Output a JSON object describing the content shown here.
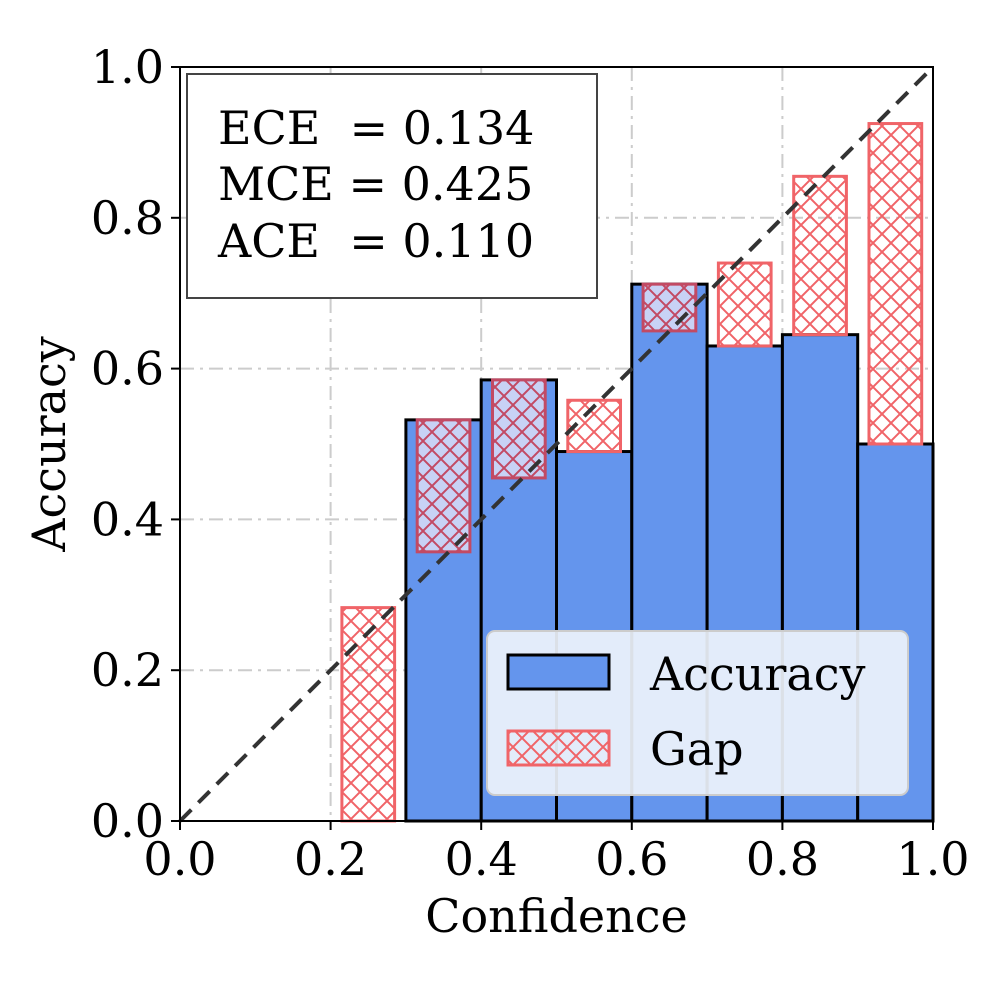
{
  "chart_data": {
    "type": "bar",
    "title": "",
    "xlabel": "Confidence",
    "ylabel": "Accuracy",
    "xlim": [
      0.0,
      1.0
    ],
    "ylim": [
      0.0,
      1.0
    ],
    "grid": true,
    "xticks": [
      "0.0",
      "0.2",
      "0.4",
      "0.6",
      "0.8",
      "1.0"
    ],
    "yticks": [
      "0.0",
      "0.2",
      "0.4",
      "0.6",
      "0.8",
      "1.0"
    ],
    "bins": [
      {
        "left": 0.3,
        "right": 0.4,
        "accuracy": 0.532,
        "confidence": 0.357
      },
      {
        "left": 0.4,
        "right": 0.5,
        "accuracy": 0.585,
        "confidence": 0.455
      },
      {
        "left": 0.5,
        "right": 0.6,
        "accuracy": 0.49,
        "confidence": 0.558
      },
      {
        "left": 0.6,
        "right": 0.7,
        "accuracy": 0.712,
        "confidence": 0.65
      },
      {
        "left": 0.7,
        "right": 0.8,
        "accuracy": 0.63,
        "confidence": 0.74
      },
      {
        "left": 0.8,
        "right": 0.9,
        "accuracy": 0.645,
        "confidence": 0.855
      },
      {
        "left": 0.9,
        "right": 1.0,
        "accuracy": 0.5,
        "confidence": 0.925
      }
    ],
    "gaps": [
      {
        "center": 0.25,
        "bottom": 0.0,
        "top": 0.283
      },
      {
        "center": 0.35,
        "bottom": 0.357,
        "top": 0.532
      },
      {
        "center": 0.45,
        "bottom": 0.455,
        "top": 0.585
      },
      {
        "center": 0.55,
        "bottom": 0.49,
        "top": 0.558
      },
      {
        "center": 0.65,
        "bottom": 0.65,
        "top": 0.712
      },
      {
        "center": 0.75,
        "bottom": 0.63,
        "top": 0.74
      },
      {
        "center": 0.85,
        "bottom": 0.645,
        "top": 0.855
      },
      {
        "center": 0.95,
        "bottom": 0.5,
        "top": 0.925
      }
    ],
    "diagonal": {
      "x": [
        0.0,
        1.0
      ],
      "y": [
        0.0,
        1.0
      ]
    },
    "metrics": {
      "line1": "ECE  = 0.134",
      "line2": "MCE = 0.425",
      "line3": "ACE  = 0.110"
    },
    "legend": {
      "position": "lower-right",
      "accuracy_label": "Accuracy",
      "gap_label": "Gap"
    },
    "colors": {
      "accuracy_fill": "#6495ed",
      "gap_color": "#f06468",
      "gap_overlap_fill": "#c8d2f5",
      "diagonal": "#333333",
      "grid": "#cccccc"
    }
  }
}
